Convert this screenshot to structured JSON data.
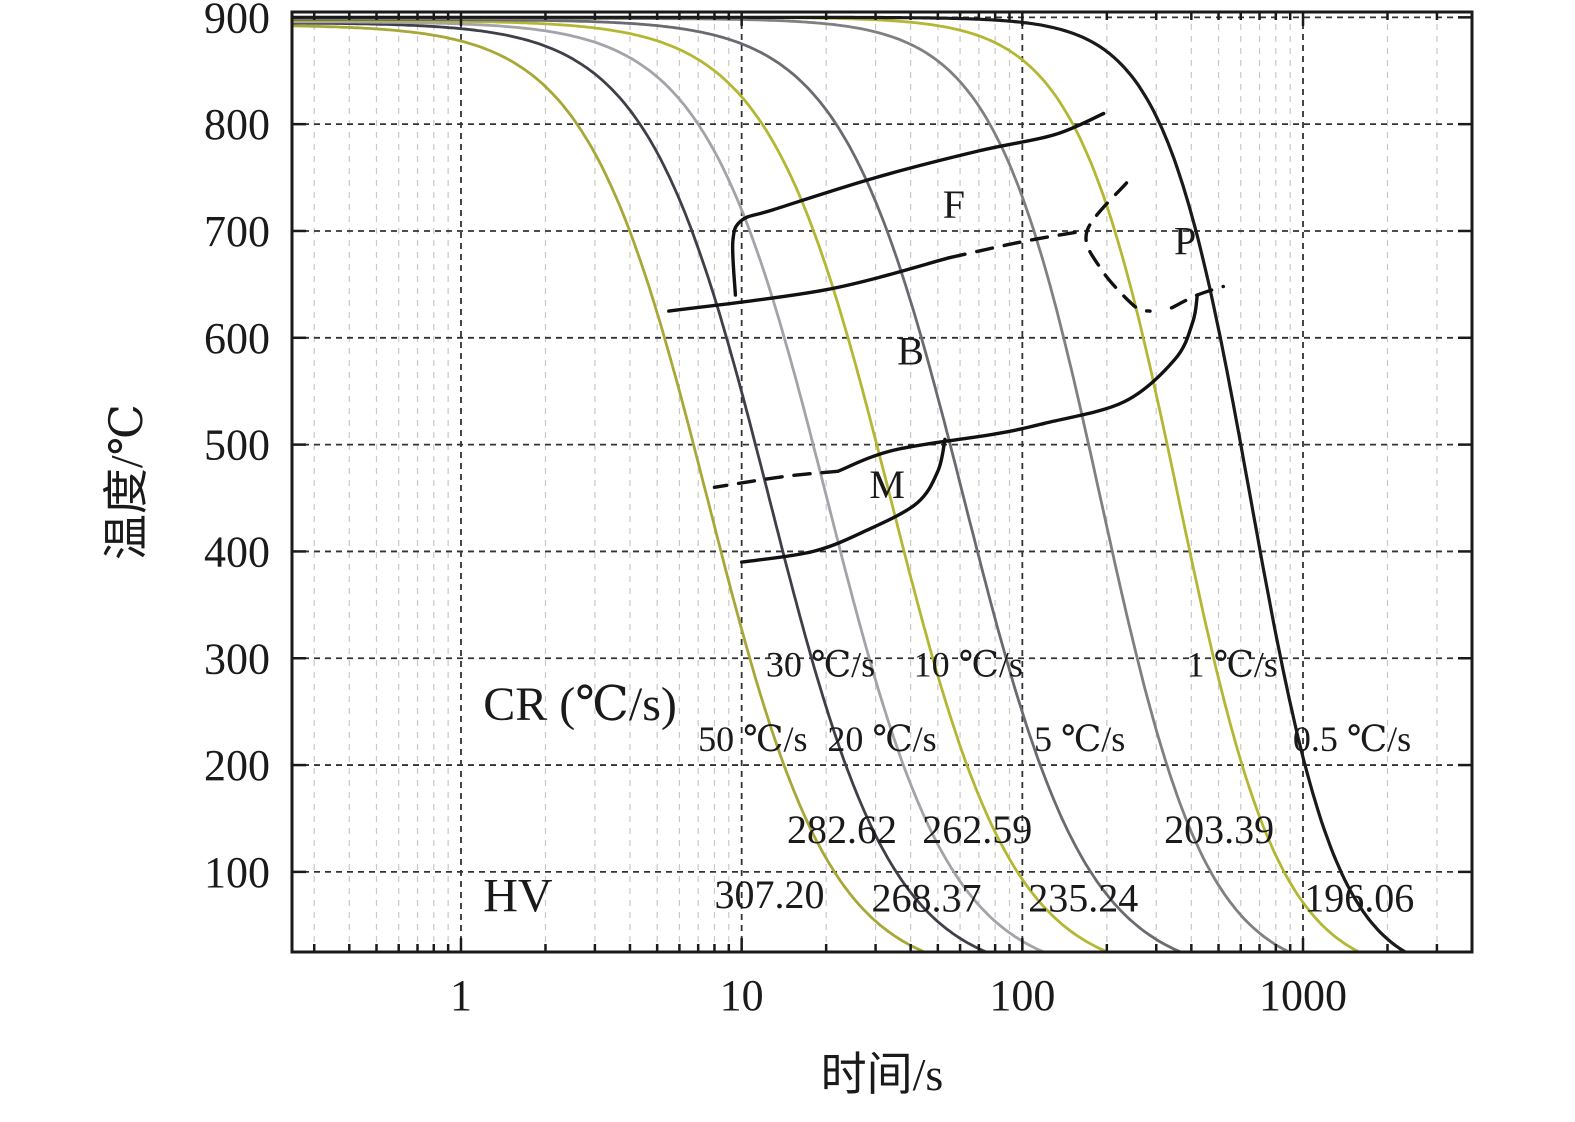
{
  "chart_data": {
    "type": "line",
    "xlabel": "时间/s",
    "ylabel": "温度/℃",
    "xscale": "log",
    "xlim": [
      0.25,
      4000
    ],
    "ylim": [
      25,
      905
    ],
    "x_ticks": [
      {
        "value": 1,
        "label": "1"
      },
      {
        "value": 10,
        "label": "10"
      },
      {
        "value": 100,
        "label": "100"
      },
      {
        "value": 1000,
        "label": "1000"
      }
    ],
    "y_ticks": [
      {
        "value": 100,
        "label": "100"
      },
      {
        "value": 200,
        "label": "200"
      },
      {
        "value": 300,
        "label": "300"
      },
      {
        "value": 400,
        "label": "400"
      },
      {
        "value": 500,
        "label": "500"
      },
      {
        "value": 600,
        "label": "600"
      },
      {
        "value": 700,
        "label": "700"
      },
      {
        "value": 800,
        "label": "800"
      },
      {
        "value": 900,
        "label": "900"
      }
    ],
    "grid": true,
    "cooling_curves": [
      {
        "name": "50 ℃/s",
        "color": "#a7a838",
        "T0": 893,
        "ts": 7.6,
        "n": 2.0
      },
      {
        "name": "30 ℃/s",
        "color": "#3f3f4a",
        "T0": 895,
        "ts": 12.6,
        "n": 2.0
      },
      {
        "name": "20 ℃/s",
        "color": "#a3a3a9",
        "T0": 896,
        "ts": 20.2,
        "n": 2.0
      },
      {
        "name": "10 ℃/s",
        "color": "#b4b733",
        "T0": 897,
        "ts": 34.0,
        "n": 2.0
      },
      {
        "name": "5 ℃/s",
        "color": "#6a6a70",
        "T0": 898,
        "ts": 62.0,
        "n": 2.0
      },
      {
        "name": "1 ℃/s",
        "color": "#7f7f84",
        "T0": 899,
        "ts": 190.0,
        "n": 2.3
      },
      {
        "name": "0.5 ℃/s",
        "color": "#b4b733",
        "T0": 900,
        "ts": 360.0,
        "n": 2.4
      },
      {
        "name": "",
        "color": "#1a1a1a",
        "T0": 900,
        "ts": 650.0,
        "n": 2.8
      }
    ],
    "phase_boundaries": [
      {
        "name": "F-start",
        "dashed": false,
        "points": [
          [
            9.5,
            640
          ],
          [
            9.3,
            690
          ],
          [
            10,
            710
          ],
          [
            13,
            720
          ],
          [
            30,
            750
          ],
          [
            70,
            775
          ],
          [
            130,
            790
          ],
          [
            195,
            810
          ]
        ]
      },
      {
        "name": "F-end",
        "dashed": false,
        "points": [
          [
            5.5,
            625
          ],
          [
            20,
            645
          ],
          [
            55,
            675
          ]
        ]
      },
      {
        "name": "F-end-dashed",
        "dashed": true,
        "points": [
          [
            55,
            675
          ],
          [
            100,
            690
          ],
          [
            165,
            700
          ]
        ]
      },
      {
        "name": "P-start",
        "dashed": true,
        "points": [
          [
            235,
            745
          ],
          [
            170,
            700
          ],
          [
            190,
            665
          ],
          [
            250,
            630
          ],
          [
            285,
            625
          ]
        ]
      },
      {
        "name": "P-end",
        "dashed": true,
        "points": [
          [
            340,
            628
          ],
          [
            420,
            640
          ],
          [
            520,
            648
          ]
        ]
      },
      {
        "name": "B-end",
        "dashed": false,
        "points": [
          [
            420,
            640
          ],
          [
            405,
            615
          ],
          [
            350,
            580
          ],
          [
            230,
            540
          ],
          [
            120,
            520
          ],
          [
            80,
            510
          ],
          [
            35,
            495
          ],
          [
            22,
            475
          ]
        ]
      },
      {
        "name": "B-end-dashed",
        "dashed": true,
        "points": [
          [
            22,
            475
          ],
          [
            14,
            470
          ],
          [
            8,
            460
          ]
        ]
      },
      {
        "name": "M-boundary",
        "dashed": false,
        "points": [
          [
            53,
            505
          ],
          [
            50,
            475
          ],
          [
            42,
            445
          ],
          [
            28,
            420
          ],
          [
            18,
            400
          ],
          [
            10,
            390
          ]
        ]
      }
    ],
    "phase_labels": [
      {
        "text": "F",
        "x": 57,
        "y": 712
      },
      {
        "text": "P",
        "x": 380,
        "y": 678
      },
      {
        "text": "B",
        "x": 40,
        "y": 575
      },
      {
        "text": "M",
        "x": 33,
        "y": 450
      }
    ],
    "annotations": [
      {
        "text": "CR (℃/s)",
        "x": 1.2,
        "y": 242,
        "size": 48,
        "anchor": "start"
      },
      {
        "text": "HV",
        "x": 1.2,
        "y": 63,
        "size": 48,
        "anchor": "start"
      },
      {
        "text": "50 ℃/s",
        "x": 7.0,
        "y": 213,
        "size": 36,
        "anchor": "start"
      },
      {
        "text": "30 ℃/s",
        "x": 12.2,
        "y": 283,
        "size": 36,
        "anchor": "start"
      },
      {
        "text": "20 ℃/s",
        "x": 20.2,
        "y": 213,
        "size": 36,
        "anchor": "start"
      },
      {
        "text": "10 ℃/s",
        "x": 41,
        "y": 283,
        "size": 36,
        "anchor": "start"
      },
      {
        "text": "5 ℃/s",
        "x": 110,
        "y": 213,
        "size": 36,
        "anchor": "start"
      },
      {
        "text": "1 ℃/s",
        "x": 385,
        "y": 283,
        "size": 36,
        "anchor": "start"
      },
      {
        "text": "0.5 ℃/s",
        "x": 920,
        "y": 213,
        "size": 36,
        "anchor": "start"
      },
      {
        "text": "307.20",
        "x": 8.0,
        "y": 66,
        "size": 40,
        "anchor": "start"
      },
      {
        "text": "282.62",
        "x": 14.5,
        "y": 127,
        "size": 40,
        "anchor": "start"
      },
      {
        "text": "268.37",
        "x": 29.0,
        "y": 63,
        "size": 40,
        "anchor": "start"
      },
      {
        "text": "262.59",
        "x": 44.0,
        "y": 127,
        "size": 40,
        "anchor": "start"
      },
      {
        "text": "235.24",
        "x": 105,
        "y": 63,
        "size": 40,
        "anchor": "start"
      },
      {
        "text": "203.39",
        "x": 320,
        "y": 127,
        "size": 40,
        "anchor": "start"
      },
      {
        "text": "196.06",
        "x": 1010,
        "y": 63,
        "size": 40,
        "anchor": "start"
      }
    ]
  }
}
